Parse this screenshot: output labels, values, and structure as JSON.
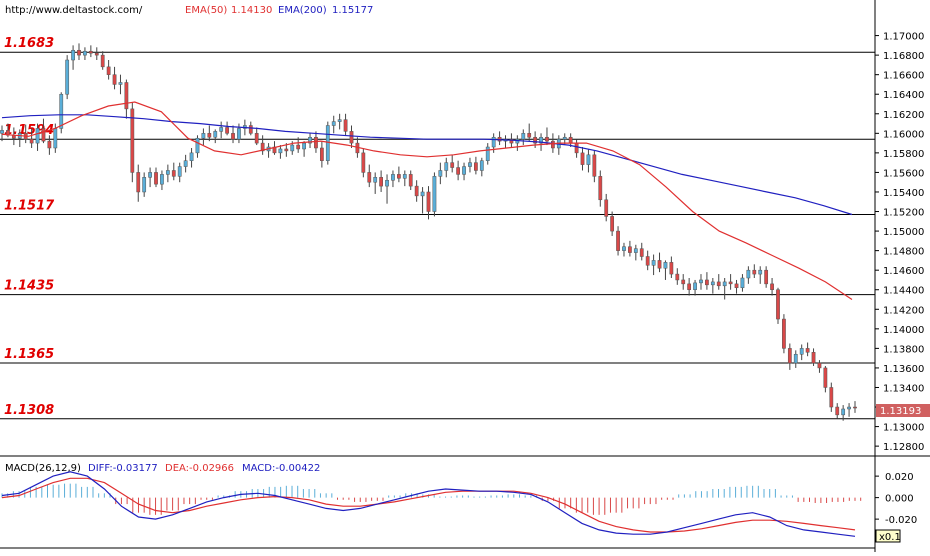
{
  "header": {
    "site": "http://www.deltastock.com/",
    "ema50_label": "EMA(50)",
    "ema50_value": "1.14130",
    "ema200_label": "EMA(200)",
    "ema200_value": "1.15177"
  },
  "macd_header": {
    "label": "MACD(26,12,9)",
    "diff": "DIFF:-0.03177",
    "dea": "DEA:-0.02966",
    "macd": "MACD:-0.00422"
  },
  "colors": {
    "bull_candle": "#5aaed8",
    "bear_candle": "#d94848",
    "ema50": "#e03030",
    "ema200": "#2020c0",
    "level_text": "#e00000",
    "price_tag": "#d06060"
  },
  "current_price": "1.13193",
  "scale_badge": "x0.1",
  "chart_data": [
    {
      "type": "candlestick",
      "ylim": [
        1.1274,
        1.1719
      ],
      "y_ticks": [
        "1.17000",
        "1.16800",
        "1.16600",
        "1.16400",
        "1.16200",
        "1.16000",
        "1.15800",
        "1.15600",
        "1.15400",
        "1.15200",
        "1.15000",
        "1.14800",
        "1.14600",
        "1.14400",
        "1.14200",
        "1.14000",
        "1.13800",
        "1.13600",
        "1.13400",
        "1.13200",
        "1.13000",
        "1.12800"
      ],
      "levels": [
        {
          "value": 1.1683,
          "label": "1.1683"
        },
        {
          "value": 1.1594,
          "label": "1.1594"
        },
        {
          "value": 1.1517,
          "label": "1.1517"
        },
        {
          "value": 1.1435,
          "label": "1.1435"
        },
        {
          "value": 1.1365,
          "label": "1.1365"
        },
        {
          "value": 1.1308,
          "label": "1.1308"
        }
      ],
      "candles": [
        [
          1.16,
          1.1608,
          1.1592,
          1.1603
        ],
        [
          1.1603,
          1.161,
          1.1596,
          1.1598
        ],
        [
          1.1598,
          1.1606,
          1.1588,
          1.1595
        ],
        [
          1.1595,
          1.1604,
          1.1586,
          1.16
        ],
        [
          1.16,
          1.1609,
          1.159,
          1.1594
        ],
        [
          1.1594,
          1.1605,
          1.1585,
          1.159
        ],
        [
          1.159,
          1.161,
          1.1582,
          1.1605
        ],
        [
          1.1605,
          1.1615,
          1.159,
          1.1592
        ],
        [
          1.1592,
          1.1598,
          1.1578,
          1.1585
        ],
        [
          1.1585,
          1.161,
          1.158,
          1.1605
        ],
        [
          1.1605,
          1.1642,
          1.16,
          1.164
        ],
        [
          1.164,
          1.168,
          1.1635,
          1.1675
        ],
        [
          1.1675,
          1.169,
          1.1665,
          1.1685
        ],
        [
          1.1685,
          1.1692,
          1.1675,
          1.168
        ],
        [
          1.168,
          1.1688,
          1.1675,
          1.1684
        ],
        [
          1.1684,
          1.169,
          1.1678,
          1.1682
        ],
        [
          1.1682,
          1.1688,
          1.1675,
          1.168
        ],
        [
          1.168,
          1.1684,
          1.1665,
          1.1668
        ],
        [
          1.1668,
          1.1675,
          1.1655,
          1.166
        ],
        [
          1.166,
          1.1668,
          1.1645,
          1.165
        ],
        [
          1.165,
          1.166,
          1.164,
          1.1652
        ],
        [
          1.1652,
          1.1655,
          1.1615,
          1.1625
        ],
        [
          1.1625,
          1.1632,
          1.155,
          1.156
        ],
        [
          1.156,
          1.1568,
          1.153,
          1.154
        ],
        [
          1.154,
          1.156,
          1.1535,
          1.1555
        ],
        [
          1.1555,
          1.1565,
          1.1545,
          1.156
        ],
        [
          1.156,
          1.1565,
          1.1545,
          1.1548
        ],
        [
          1.1548,
          1.1562,
          1.1542,
          1.1558
        ],
        [
          1.1558,
          1.1568,
          1.155,
          1.1562
        ],
        [
          1.1562,
          1.157,
          1.1552,
          1.1556
        ],
        [
          1.1556,
          1.157,
          1.155,
          1.1566
        ],
        [
          1.1566,
          1.1578,
          1.156,
          1.1572
        ],
        [
          1.1572,
          1.1585,
          1.1565,
          1.158
        ],
        [
          1.158,
          1.1598,
          1.1575,
          1.1595
        ],
        [
          1.1595,
          1.1605,
          1.1588,
          1.16
        ],
        [
          1.16,
          1.1608,
          1.1592,
          1.1596
        ],
        [
          1.1596,
          1.1604,
          1.159,
          1.1602
        ],
        [
          1.1602,
          1.1612,
          1.1595,
          1.1606
        ],
        [
          1.1606,
          1.1612,
          1.1598,
          1.16
        ],
        [
          1.16,
          1.1608,
          1.159,
          1.1594
        ],
        [
          1.1594,
          1.161,
          1.159,
          1.1605
        ],
        [
          1.1605,
          1.1614,
          1.1598,
          1.1608
        ],
        [
          1.1608,
          1.1612,
          1.1598,
          1.16
        ],
        [
          1.16,
          1.1606,
          1.1588,
          1.159
        ],
        [
          1.159,
          1.1598,
          1.1578,
          1.1582
        ],
        [
          1.1582,
          1.159,
          1.1575,
          1.1586
        ],
        [
          1.1586,
          1.1592,
          1.1578,
          1.158
        ],
        [
          1.158,
          1.1588,
          1.1574,
          1.1584
        ],
        [
          1.1584,
          1.159,
          1.1576,
          1.1582
        ],
        [
          1.1582,
          1.1592,
          1.1578,
          1.1588
        ],
        [
          1.1588,
          1.1596,
          1.158,
          1.1584
        ],
        [
          1.1584,
          1.1592,
          1.1576,
          1.159
        ],
        [
          1.159,
          1.16,
          1.1585,
          1.1596
        ],
        [
          1.1596,
          1.1602,
          1.158,
          1.1585
        ],
        [
          1.1585,
          1.1592,
          1.1565,
          1.1572
        ],
        [
          1.1572,
          1.1612,
          1.1568,
          1.1608
        ],
        [
          1.1608,
          1.1618,
          1.16,
          1.1612
        ],
        [
          1.1612,
          1.162,
          1.1604,
          1.1614
        ],
        [
          1.1614,
          1.162,
          1.1598,
          1.1602
        ],
        [
          1.1602,
          1.1608,
          1.1585,
          1.159
        ],
        [
          1.159,
          1.1596,
          1.1575,
          1.158
        ],
        [
          1.158,
          1.1585,
          1.1555,
          1.156
        ],
        [
          1.156,
          1.1568,
          1.1545,
          1.155
        ],
        [
          1.155,
          1.156,
          1.1538,
          1.1555
        ],
        [
          1.1555,
          1.1562,
          1.154,
          1.1546
        ],
        [
          1.1546,
          1.1558,
          1.1528,
          1.1552
        ],
        [
          1.1552,
          1.1562,
          1.1545,
          1.1558
        ],
        [
          1.1558,
          1.1566,
          1.155,
          1.1554
        ],
        [
          1.1554,
          1.1562,
          1.1546,
          1.1558
        ],
        [
          1.1558,
          1.1562,
          1.1542,
          1.1546
        ],
        [
          1.1546,
          1.1552,
          1.153,
          1.1536
        ],
        [
          1.1536,
          1.1545,
          1.1518,
          1.154
        ],
        [
          1.154,
          1.1546,
          1.1512,
          1.152
        ],
        [
          1.152,
          1.156,
          1.1515,
          1.1556
        ],
        [
          1.1556,
          1.157,
          1.1548,
          1.1562
        ],
        [
          1.1562,
          1.1575,
          1.1555,
          1.157
        ],
        [
          1.157,
          1.1578,
          1.156,
          1.1565
        ],
        [
          1.1565,
          1.1572,
          1.1552,
          1.1558
        ],
        [
          1.1558,
          1.157,
          1.1552,
          1.1566
        ],
        [
          1.1566,
          1.1575,
          1.156,
          1.157
        ],
        [
          1.157,
          1.1576,
          1.1558,
          1.1562
        ],
        [
          1.1562,
          1.1575,
          1.1556,
          1.1572
        ],
        [
          1.1572,
          1.159,
          1.1568,
          1.1586
        ],
        [
          1.1586,
          1.16,
          1.158,
          1.1596
        ],
        [
          1.1596,
          1.1602,
          1.1588,
          1.1592
        ],
        [
          1.1592,
          1.1598,
          1.1585,
          1.1594
        ],
        [
          1.1594,
          1.16,
          1.1586,
          1.159
        ],
        [
          1.159,
          1.1598,
          1.1582,
          1.1594
        ],
        [
          1.1594,
          1.1604,
          1.1588,
          1.16
        ],
        [
          1.16,
          1.161,
          1.1592,
          1.1596
        ],
        [
          1.1596,
          1.1602,
          1.1585,
          1.159
        ],
        [
          1.159,
          1.16,
          1.1582,
          1.1596
        ],
        [
          1.1596,
          1.1606,
          1.1588,
          1.1592
        ],
        [
          1.1592,
          1.16,
          1.158,
          1.1585
        ],
        [
          1.1585,
          1.1598,
          1.1578,
          1.1594
        ],
        [
          1.1594,
          1.16,
          1.1588,
          1.1596
        ],
        [
          1.1596,
          1.16,
          1.1586,
          1.159
        ],
        [
          1.159,
          1.1594,
          1.1575,
          1.158
        ],
        [
          1.158,
          1.1586,
          1.1562,
          1.1568
        ],
        [
          1.1568,
          1.1584,
          1.156,
          1.1578
        ],
        [
          1.1578,
          1.1582,
          1.155,
          1.1556
        ],
        [
          1.1556,
          1.1562,
          1.1525,
          1.1532
        ],
        [
          1.1532,
          1.1538,
          1.151,
          1.1515
        ],
        [
          1.1515,
          1.152,
          1.1495,
          1.15
        ],
        [
          1.15,
          1.1505,
          1.1475,
          1.148
        ],
        [
          1.148,
          1.1488,
          1.1474,
          1.1484
        ],
        [
          1.1484,
          1.149,
          1.1474,
          1.1478
        ],
        [
          1.1478,
          1.1486,
          1.147,
          1.1482
        ],
        [
          1.1482,
          1.1488,
          1.147,
          1.1474
        ],
        [
          1.1474,
          1.148,
          1.146,
          1.1465
        ],
        [
          1.1465,
          1.1476,
          1.1455,
          1.147
        ],
        [
          1.147,
          1.1478,
          1.1458,
          1.1462
        ],
        [
          1.1462,
          1.147,
          1.145,
          1.1468
        ],
        [
          1.1468,
          1.1474,
          1.1452,
          1.1456
        ],
        [
          1.1456,
          1.1462,
          1.1445,
          1.145
        ],
        [
          1.145,
          1.1456,
          1.144,
          1.1446
        ],
        [
          1.1446,
          1.1452,
          1.1434,
          1.144
        ],
        [
          1.144,
          1.145,
          1.1434,
          1.1447
        ],
        [
          1.1447,
          1.1456,
          1.144,
          1.145
        ],
        [
          1.145,
          1.1458,
          1.144,
          1.1445
        ],
        [
          1.1445,
          1.1452,
          1.1436,
          1.1448
        ],
        [
          1.1448,
          1.1456,
          1.144,
          1.1444
        ],
        [
          1.1444,
          1.1452,
          1.143,
          1.1448
        ],
        [
          1.1448,
          1.1456,
          1.144,
          1.1446
        ],
        [
          1.1446,
          1.145,
          1.1436,
          1.1442
        ],
        [
          1.1442,
          1.1456,
          1.1438,
          1.1452
        ],
        [
          1.1452,
          1.1464,
          1.1446,
          1.146
        ],
        [
          1.146,
          1.1466,
          1.1452,
          1.1456
        ],
        [
          1.1456,
          1.1464,
          1.1446,
          1.146
        ],
        [
          1.146,
          1.1464,
          1.1442,
          1.1446
        ],
        [
          1.1446,
          1.1452,
          1.1434,
          1.144
        ],
        [
          1.144,
          1.1442,
          1.1405,
          1.141
        ],
        [
          1.141,
          1.1415,
          1.1375,
          1.138
        ],
        [
          1.138,
          1.1385,
          1.1358,
          1.1365
        ],
        [
          1.1365,
          1.1378,
          1.136,
          1.1374
        ],
        [
          1.1374,
          1.1384,
          1.1368,
          1.138
        ],
        [
          1.138,
          1.1386,
          1.1372,
          1.1376
        ],
        [
          1.1376,
          1.138,
          1.1362,
          1.1365
        ],
        [
          1.1365,
          1.1368,
          1.1355,
          1.136
        ],
        [
          1.136,
          1.1362,
          1.1335,
          1.134
        ],
        [
          1.134,
          1.1345,
          1.1315,
          1.132
        ],
        [
          1.132,
          1.1324,
          1.1308,
          1.1312
        ],
        [
          1.1312,
          1.1322,
          1.1306,
          1.1318
        ],
        [
          1.1318,
          1.1324,
          1.131,
          1.132
        ],
        [
          1.132,
          1.1326,
          1.1314,
          1.1319
        ]
      ],
      "ema50": [
        1.1599,
        1.1597,
        1.1605,
        1.1618,
        1.1628,
        1.1632,
        1.1622,
        1.1595,
        1.1582,
        1.1578,
        1.1584,
        1.159,
        1.1592,
        1.1588,
        1.1582,
        1.1578,
        1.1576,
        1.1578,
        1.1582,
        1.1585,
        1.1588,
        1.159,
        1.159,
        1.1582,
        1.1568,
        1.1545,
        1.152,
        1.15,
        1.1488,
        1.1475,
        1.1462,
        1.1448,
        1.143
      ],
      "ema200": [
        1.1616,
        1.1618,
        1.1619,
        1.1619,
        1.1617,
        1.1615,
        1.1612,
        1.161,
        1.1607,
        1.1605,
        1.1602,
        1.16,
        1.1598,
        1.1596,
        1.1595,
        1.1594,
        1.1594,
        1.1594,
        1.1593,
        1.1591,
        1.1588,
        1.1582,
        1.1574,
        1.1566,
        1.1558,
        1.1552,
        1.1546,
        1.154,
        1.1534,
        1.1526,
        1.1517
      ]
    },
    {
      "type": "macd",
      "ylim": [
        -0.045,
        0.035
      ],
      "y_ticks": [
        "0.020",
        "0.000",
        "-0.020"
      ],
      "diff": [
        0.002,
        0.004,
        0.012,
        0.02,
        0.024,
        0.02,
        0.008,
        -0.008,
        -0.018,
        -0.02,
        -0.016,
        -0.01,
        -0.004,
        0.0,
        0.003,
        0.004,
        0.002,
        -0.002,
        -0.006,
        -0.01,
        -0.012,
        -0.01,
        -0.006,
        -0.002,
        0.002,
        0.006,
        0.008,
        0.007,
        0.006,
        0.006,
        0.005,
        0.003,
        -0.004,
        -0.014,
        -0.024,
        -0.03,
        -0.033,
        -0.034,
        -0.034,
        -0.032,
        -0.028,
        -0.024,
        -0.02,
        -0.016,
        -0.014,
        -0.018,
        -0.026,
        -0.03,
        -0.032,
        -0.034,
        -0.036
      ],
      "dea": [
        0.0,
        0.002,
        0.008,
        0.014,
        0.018,
        0.018,
        0.014,
        0.004,
        -0.006,
        -0.012,
        -0.014,
        -0.012,
        -0.008,
        -0.005,
        -0.002,
        0.0,
        0.001,
        0.0,
        -0.002,
        -0.006,
        -0.008,
        -0.008,
        -0.006,
        -0.004,
        -0.001,
        0.002,
        0.005,
        0.006,
        0.006,
        0.006,
        0.006,
        0.004,
        0.0,
        -0.006,
        -0.014,
        -0.022,
        -0.027,
        -0.03,
        -0.032,
        -0.032,
        -0.031,
        -0.029,
        -0.026,
        -0.023,
        -0.021,
        -0.021,
        -0.022,
        -0.024,
        -0.026,
        -0.028,
        -0.03
      ],
      "hist": [
        0.004,
        0.006,
        0.01,
        0.012,
        0.013,
        0.01,
        0.004,
        -0.006,
        -0.014,
        -0.016,
        -0.012,
        -0.006,
        -0.002,
        0.002,
        0.006,
        0.008,
        0.01,
        0.011,
        0.008,
        0.004,
        -0.002,
        -0.004,
        -0.003,
        0.002,
        0.004,
        0.003,
        0.001,
        0.002,
        0.001,
        0.002,
        0.003,
        0.002,
        -0.003,
        -0.01,
        -0.014,
        -0.016,
        -0.014,
        -0.01,
        -0.006,
        -0.002,
        0.003,
        0.006,
        0.008,
        0.01,
        0.011,
        0.008,
        0.002,
        -0.004,
        -0.005,
        -0.004,
        -0.003
      ]
    }
  ]
}
